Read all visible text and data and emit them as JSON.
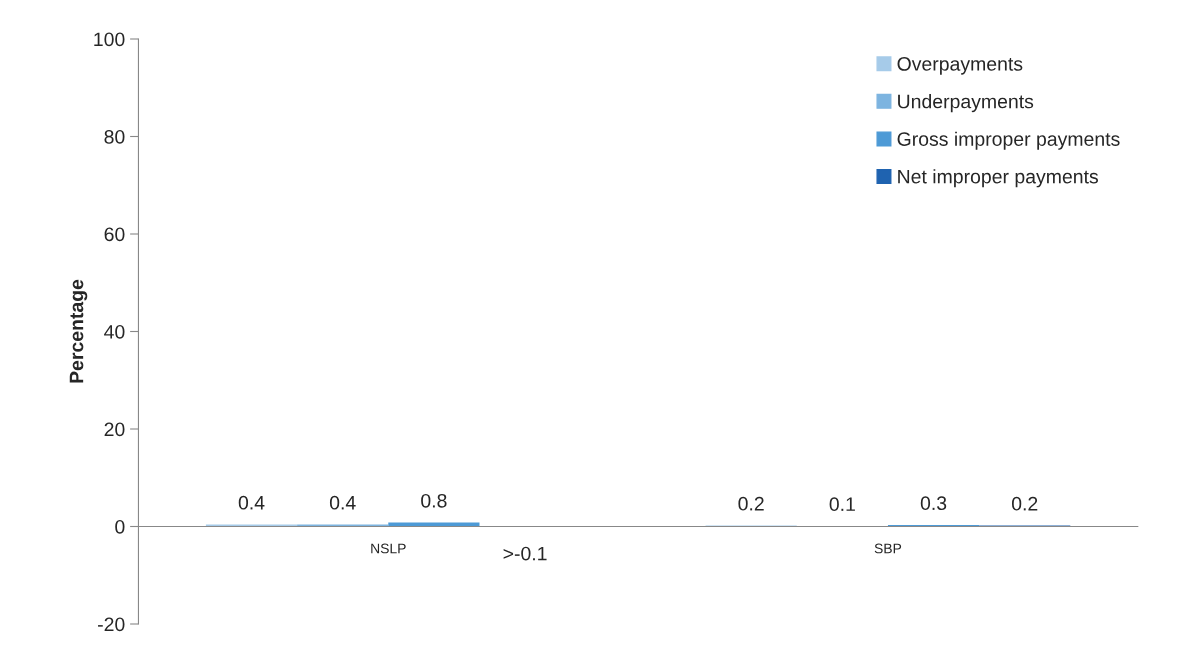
{
  "chart_data": {
    "type": "bar",
    "ylabel": "Percentage",
    "categories": [
      "NSLP",
      "SBP"
    ],
    "series": [
      {
        "name": "Overpayments",
        "color": "#a6cbe9",
        "values": [
          0.4,
          0.2
        ],
        "value_labels": [
          "0.4",
          "0.2"
        ]
      },
      {
        "name": "Underpayments",
        "color": "#7db4e0",
        "values": [
          0.4,
          0.1
        ],
        "value_labels": [
          "0.4",
          "0.1"
        ]
      },
      {
        "name": "Gross improper payments",
        "color": "#4d9ad6",
        "values": [
          0.8,
          0.3
        ],
        "value_labels": [
          "0.8",
          "0.3"
        ]
      },
      {
        "name": "Net improper payments",
        "color": "#1f63b0",
        "values": [
          -0.05,
          0.2
        ],
        "value_labels": [
          ">-0.1",
          "0.2"
        ]
      }
    ],
    "ylim": [
      -20,
      100
    ],
    "yticks": [
      -20,
      0,
      20,
      40,
      60,
      80,
      100
    ],
    "grid": false,
    "legend": "top right"
  }
}
